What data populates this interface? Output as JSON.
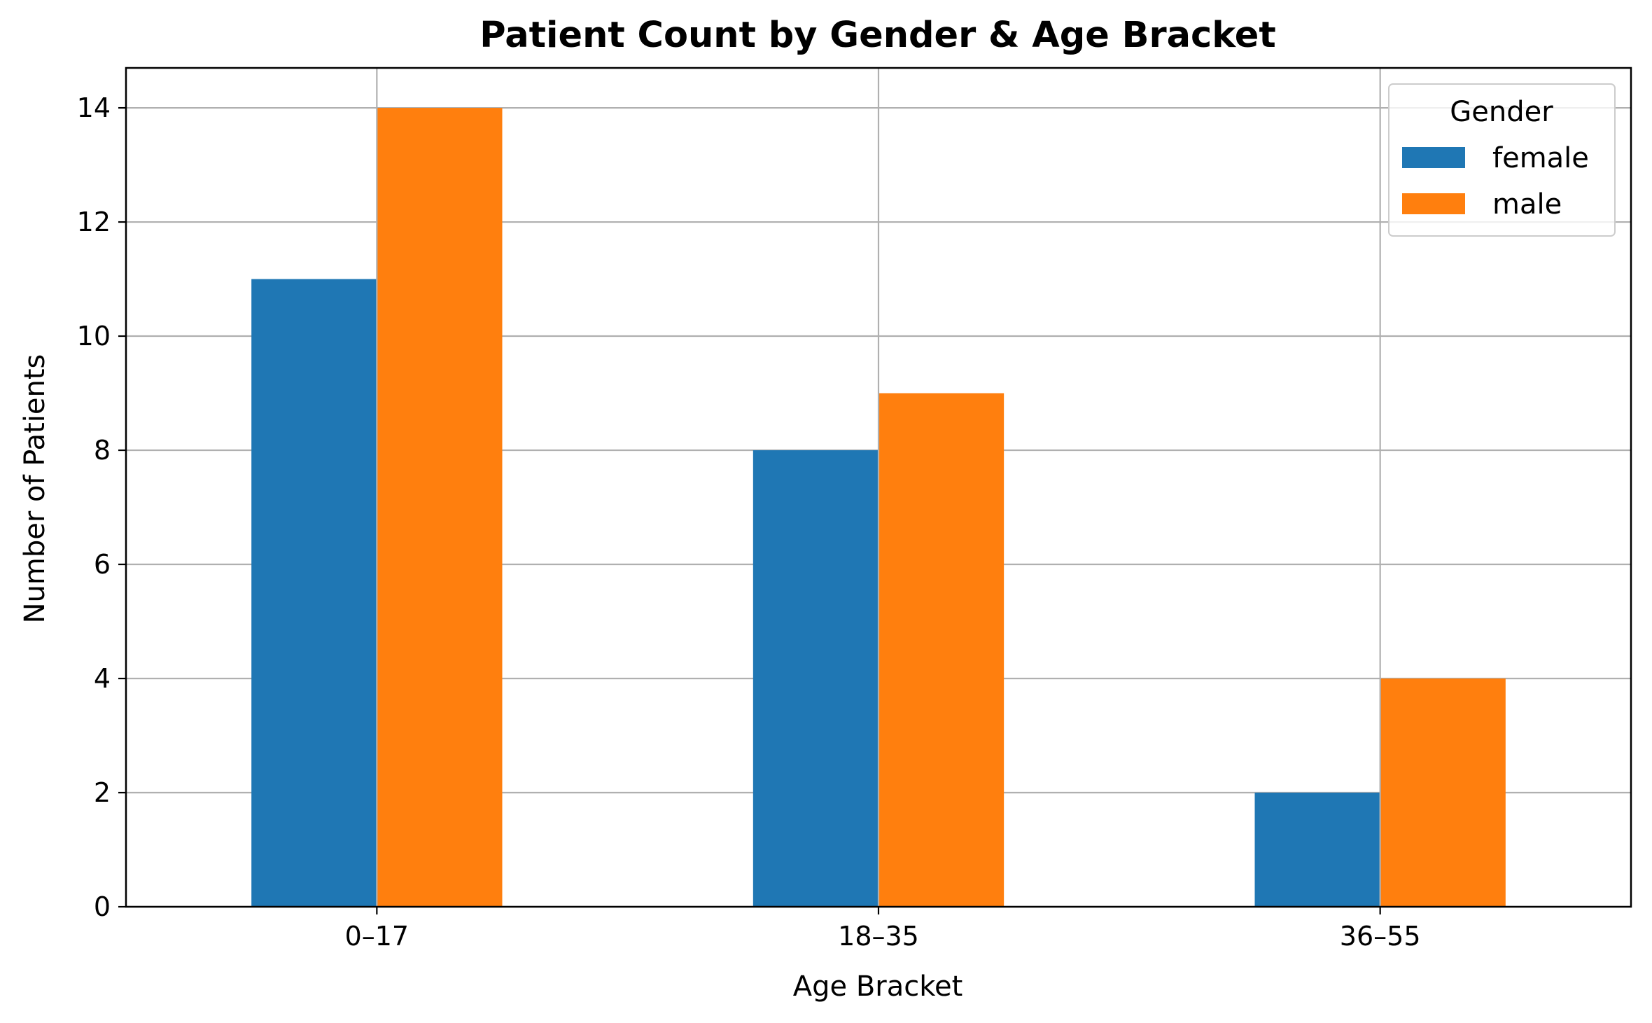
{
  "chart_data": {
    "type": "bar",
    "title": "Patient Count by Gender & Age Bracket",
    "xlabel": "Age Bracket",
    "ylabel": "Number of Patients",
    "categories": [
      "0–17",
      "18–35",
      "36–55"
    ],
    "series": [
      {
        "name": "female",
        "color": "#1f77b4",
        "values": [
          11,
          8,
          2
        ]
      },
      {
        "name": "male",
        "color": "#ff7f0e",
        "values": [
          14,
          9,
          4
        ]
      }
    ],
    "ylim": [
      0,
      14.7
    ],
    "yticks": [
      0,
      2,
      4,
      6,
      8,
      10,
      12,
      14
    ],
    "grid": true,
    "legend": {
      "title": "Gender",
      "placement": "top-right"
    }
  }
}
